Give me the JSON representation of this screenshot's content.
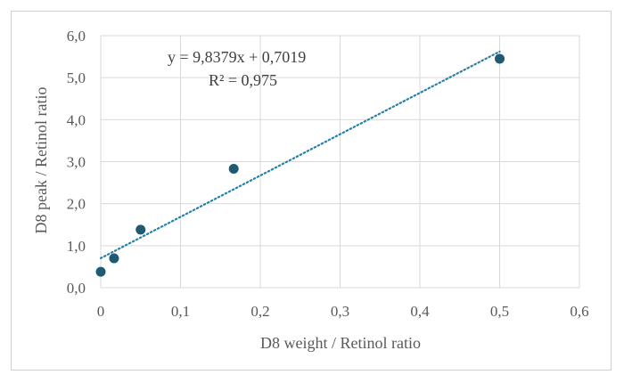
{
  "chart_data": {
    "type": "scatter",
    "title": "",
    "xlabel": "D8 weight / Retinol ratio",
    "ylabel": "D8 peak / Retinol ratio",
    "xlim": [
      0,
      0.6
    ],
    "ylim": [
      0,
      6
    ],
    "x_ticks": [
      "0",
      "0,1",
      "0,2",
      "0,3",
      "0,4",
      "0,5",
      "0,6"
    ],
    "y_ticks": [
      "0,0",
      "1,0",
      "2,0",
      "3,0",
      "4,0",
      "5,0",
      "6,0"
    ],
    "grid": true,
    "legend": "none",
    "series": [
      {
        "points": [
          {
            "x": 0.0,
            "y": 0.38
          },
          {
            "x": 0.0167,
            "y": 0.7
          },
          {
            "x": 0.05,
            "y": 1.38
          },
          {
            "x": 0.1667,
            "y": 2.83
          },
          {
            "x": 0.5,
            "y": 5.45
          }
        ],
        "color": "#1f5a72"
      }
    ],
    "trendline": {
      "type": "linear",
      "slope": 9.8379,
      "intercept": 0.7019,
      "x_range": [
        0,
        0.5
      ],
      "color": "#2e7fa0",
      "style": "dotted"
    },
    "annotations": {
      "equation": "y = 9,8379x + 0,7019",
      "r_squared": "R² = 0,975"
    }
  }
}
